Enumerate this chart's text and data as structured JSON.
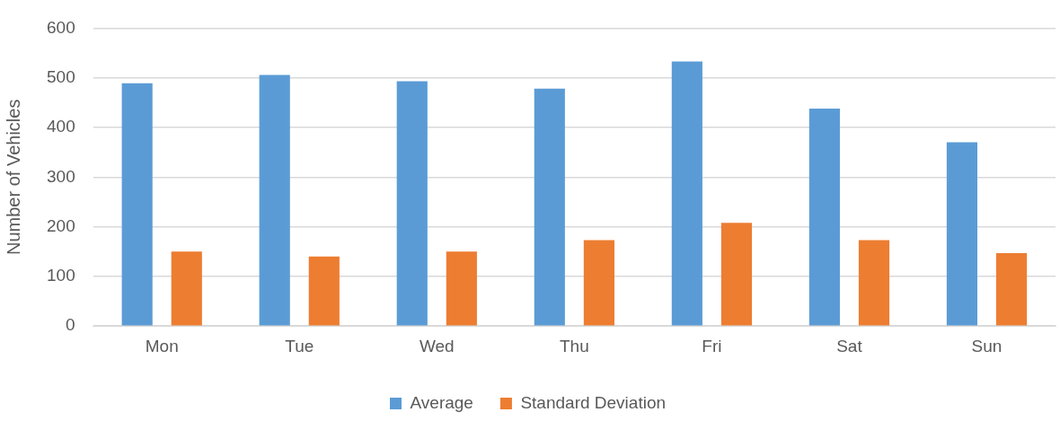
{
  "chart_data": {
    "type": "bar",
    "ylabel": "Number of Vehicles",
    "categories": [
      "Mon",
      "Tue",
      "Wed",
      "Thu",
      "Fri",
      "Sat",
      "Sun"
    ],
    "series": [
      {
        "name": "Average",
        "color": "#5b9bd5",
        "values": [
          489,
          506,
          493,
          478,
          533,
          438,
          370
        ]
      },
      {
        "name": "Standard Deviation",
        "color": "#ed7d31",
        "values": [
          150,
          140,
          150,
          173,
          208,
          173,
          147
        ]
      }
    ],
    "ylim": [
      0,
      600
    ],
    "yticks": [
      0,
      100,
      200,
      300,
      400,
      500,
      600
    ],
    "grid": "y",
    "legend": "bottom"
  }
}
